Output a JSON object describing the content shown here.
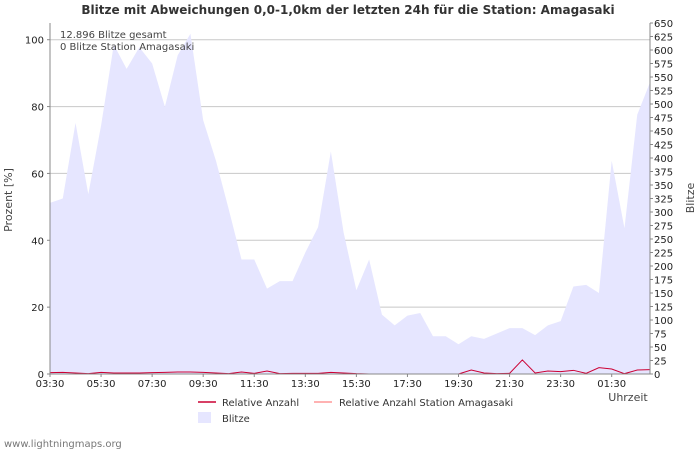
{
  "chart_data": {
    "type": "area",
    "title": "Blitze mit Abweichungen 0,0-1,0km der letzten 24h für die Station: Amagasaki",
    "ylabel_left": "Prozent   [%]",
    "ylabel_right": "Blitze",
    "xlabel": "Uhrzeit",
    "ylim_left": [
      0,
      105
    ],
    "ylim_right": [
      0,
      650
    ],
    "left_ticks": [
      0,
      20,
      40,
      60,
      80,
      100
    ],
    "right_ticks": [
      0,
      25,
      50,
      75,
      100,
      125,
      150,
      175,
      200,
      225,
      250,
      275,
      300,
      325,
      350,
      375,
      400,
      425,
      450,
      475,
      500,
      525,
      550,
      575,
      600,
      625,
      650
    ],
    "x_range": [
      0,
      47
    ],
    "x_ticks": [
      {
        "x": 0,
        "label": "03:30"
      },
      {
        "x": 4,
        "label": "05:30"
      },
      {
        "x": 8,
        "label": "07:30"
      },
      {
        "x": 12,
        "label": "09:30"
      },
      {
        "x": 16,
        "label": "11:30"
      },
      {
        "x": 20,
        "label": "13:30"
      },
      {
        "x": 24,
        "label": "15:30"
      },
      {
        "x": 28,
        "label": "17:30"
      },
      {
        "x": 32,
        "label": "19:30"
      },
      {
        "x": 36,
        "label": "21:30"
      },
      {
        "x": 40,
        "label": "23:30"
      },
      {
        "x": 44,
        "label": "01:30"
      }
    ],
    "grid": true,
    "annotations": [
      "12.896 Blitze gesamt",
      "0 Blitze Station Amagasaki"
    ],
    "series": [
      {
        "name": "Relative Anzahl",
        "axis": "left",
        "color": "#cc0033",
        "values": [
          0.4,
          0.5,
          0.3,
          0.1,
          0.5,
          0.3,
          0.3,
          0.3,
          0.4,
          0.5,
          0.6,
          0.6,
          0.5,
          0.3,
          0.1,
          0.6,
          0.2,
          0.9,
          0.1,
          0.2,
          0.2,
          0.2,
          0.5,
          0.3,
          0.1,
          0,
          0,
          0,
          0,
          0,
          0,
          0,
          0,
          1.2,
          0.3,
          0.1,
          0.2,
          4.2,
          0.3,
          0.9,
          0.7,
          1.1,
          0.2,
          1.9,
          1.5,
          0.1,
          1.2,
          1.3
        ]
      },
      {
        "name": "Relative Anzahl Station Amagasaki",
        "axis": "left",
        "color": "#ff9999",
        "values": [
          0,
          0,
          0,
          0,
          0,
          0,
          0,
          0,
          0,
          0,
          0,
          0,
          0,
          0,
          0,
          0,
          0,
          0,
          0,
          0,
          0,
          0,
          0,
          0,
          0,
          0,
          0,
          0,
          0,
          0,
          0,
          0,
          0,
          0,
          0,
          0,
          0,
          0,
          0,
          0,
          0,
          0,
          0,
          0,
          0,
          0,
          0,
          0
        ]
      },
      {
        "name": "Blitze",
        "axis": "right",
        "color": "#e6e6ff",
        "values": [
          317,
          325,
          465,
          333,
          460,
          610,
          565,
          605,
          575,
          495,
          590,
          630,
          470,
          395,
          305,
          212,
          212,
          158,
          172,
          172,
          225,
          272,
          412,
          262,
          155,
          212,
          110,
          90,
          108,
          113,
          70,
          70,
          55,
          70,
          65,
          75,
          85,
          85,
          72,
          90,
          98,
          162,
          165,
          150,
          395,
          270,
          480,
          540
        ]
      }
    ]
  },
  "footer": "www.lightningmaps.org"
}
